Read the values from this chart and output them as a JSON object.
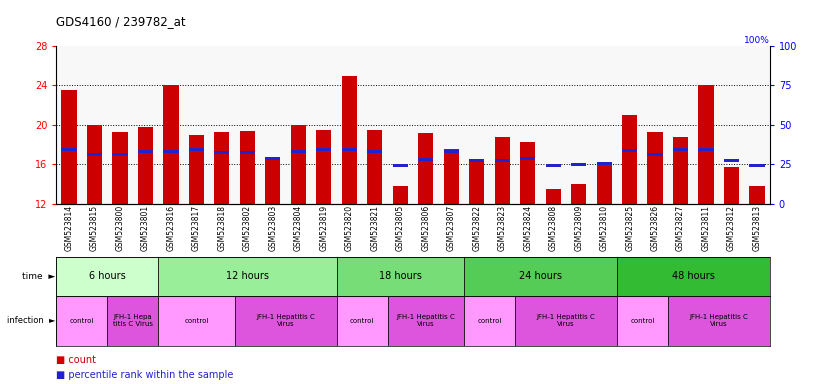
{
  "title": "GDS4160 / 239782_at",
  "samples": [
    "GSM523814",
    "GSM523815",
    "GSM523800",
    "GSM523801",
    "GSM523816",
    "GSM523817",
    "GSM523818",
    "GSM523802",
    "GSM523803",
    "GSM523804",
    "GSM523819",
    "GSM523820",
    "GSM523821",
    "GSM523805",
    "GSM523806",
    "GSM523807",
    "GSM523822",
    "GSM523823",
    "GSM523824",
    "GSM523808",
    "GSM523809",
    "GSM523810",
    "GSM523825",
    "GSM523826",
    "GSM523827",
    "GSM523811",
    "GSM523812",
    "GSM523813"
  ],
  "red_values": [
    23.5,
    20.0,
    19.3,
    19.8,
    24.0,
    19.0,
    19.3,
    19.4,
    16.7,
    20.0,
    19.5,
    25.0,
    19.5,
    13.8,
    19.2,
    17.5,
    16.2,
    18.8,
    18.3,
    13.5,
    14.0,
    16.1,
    21.0,
    19.3,
    18.8,
    24.0,
    15.7,
    13.8
  ],
  "blue_values": [
    17.5,
    17.0,
    17.0,
    17.3,
    17.3,
    17.5,
    17.2,
    17.2,
    16.6,
    17.3,
    17.5,
    17.5,
    17.3,
    15.9,
    16.5,
    17.3,
    16.4,
    16.4,
    16.6,
    15.9,
    16.0,
    16.1,
    17.4,
    17.0,
    17.5,
    17.5,
    16.4,
    15.9
  ],
  "ylim_left": [
    12,
    28
  ],
  "ylim_right": [
    0,
    100
  ],
  "yticks_left": [
    12,
    16,
    20,
    24,
    28
  ],
  "yticks_right": [
    0,
    25,
    50,
    75,
    100
  ],
  "time_groups": [
    {
      "label": "6 hours",
      "start": 0,
      "end": 4,
      "color": "#ccffcc"
    },
    {
      "label": "12 hours",
      "start": 4,
      "end": 11,
      "color": "#99ee99"
    },
    {
      "label": "18 hours",
      "start": 11,
      "end": 16,
      "color": "#77dd77"
    },
    {
      "label": "24 hours",
      "start": 16,
      "end": 22,
      "color": "#55cc55"
    },
    {
      "label": "48 hours",
      "start": 22,
      "end": 28,
      "color": "#33bb33"
    }
  ],
  "infection_groups": [
    {
      "label": "control",
      "start": 0,
      "end": 2,
      "ctrl": true
    },
    {
      "label": "JFH-1 Hepa\ntitis C Virus",
      "start": 2,
      "end": 4,
      "ctrl": false
    },
    {
      "label": "control",
      "start": 4,
      "end": 7,
      "ctrl": true
    },
    {
      "label": "JFH-1 Hepatitis C\nVirus",
      "start": 7,
      "end": 11,
      "ctrl": false
    },
    {
      "label": "control",
      "start": 11,
      "end": 13,
      "ctrl": true
    },
    {
      "label": "JFH-1 Hepatitis C\nVirus",
      "start": 13,
      "end": 16,
      "ctrl": false
    },
    {
      "label": "control",
      "start": 16,
      "end": 18,
      "ctrl": true
    },
    {
      "label": "JFH-1 Hepatitis C\nVirus",
      "start": 18,
      "end": 22,
      "ctrl": false
    },
    {
      "label": "control",
      "start": 22,
      "end": 24,
      "ctrl": true
    },
    {
      "label": "JFH-1 Hepatitis C\nVirus",
      "start": 24,
      "end": 28,
      "ctrl": false
    }
  ],
  "bar_color": "#cc0000",
  "blue_color": "#2222cc",
  "axis_bg": "#f8f8f8",
  "grid_color": "#000000",
  "control_color": "#ff99ff",
  "virus_color": "#dd55dd",
  "label_row_bg": "#d8d8d8"
}
